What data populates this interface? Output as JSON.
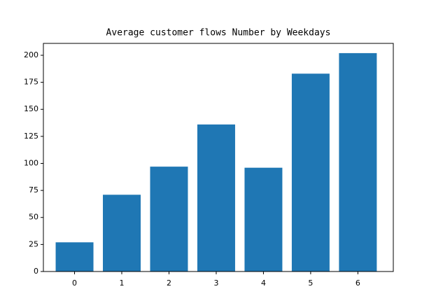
{
  "chart_data": {
    "type": "bar",
    "title": "Average customer flows Number by Weekdays",
    "x": [
      0,
      1,
      2,
      3,
      4,
      5,
      6
    ],
    "values": [
      27,
      71,
      97,
      136,
      96,
      183,
      202
    ],
    "color": "#1f77b4",
    "xlim": [
      -0.66,
      6.75
    ],
    "xticks": [
      0,
      1,
      2,
      3,
      4,
      5,
      6
    ],
    "ylim": [
      0,
      211
    ],
    "yticks": [
      0,
      25,
      50,
      75,
      100,
      125,
      150,
      175,
      200
    ]
  }
}
